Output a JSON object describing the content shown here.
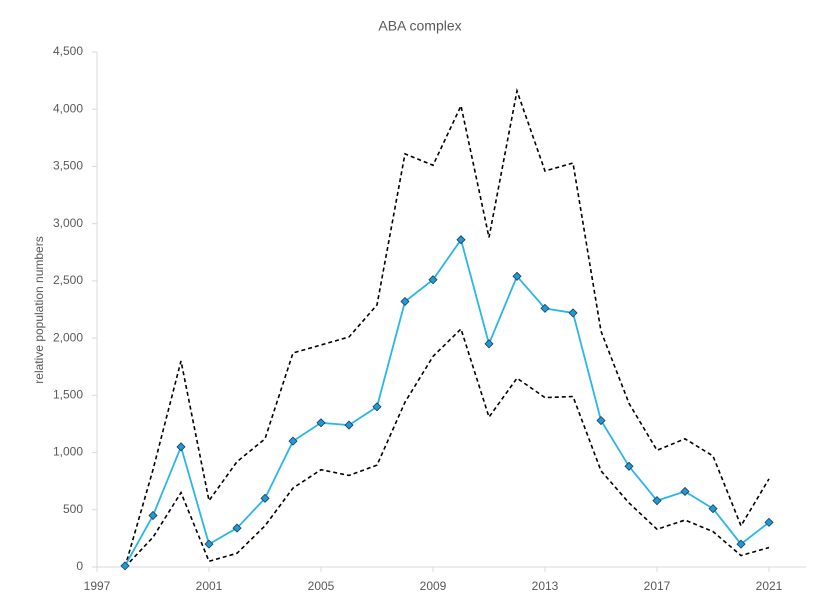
{
  "chart_data": {
    "type": "line",
    "title": "ABA complex",
    "y_label": "relative population numbers",
    "x": [
      1998,
      1999,
      2000,
      2001,
      2002,
      2003,
      2004,
      2005,
      2006,
      2007,
      2008,
      2009,
      2010,
      2011,
      2012,
      2013,
      2014,
      2015,
      2016,
      2017,
      2018,
      2019,
      2020,
      2021
    ],
    "series": [
      {
        "color": "#000000",
        "style": "dashed",
        "values": [
          0,
          850,
          1800,
          580,
          920,
          1120,
          1870,
          1940,
          2010,
          2290,
          3610,
          3510,
          4030,
          2880,
          4160,
          3460,
          3530,
          2060,
          1430,
          1020,
          1120,
          970,
          360,
          770
        ]
      },
      {
        "color": "#000000",
        "style": "dashed",
        "values": [
          0,
          260,
          650,
          50,
          120,
          360,
          690,
          850,
          800,
          890,
          1440,
          1840,
          2080,
          1310,
          1650,
          1480,
          1490,
          840,
          560,
          330,
          410,
          310,
          100,
          170
        ]
      },
      {
        "color": "#29b6e8",
        "style": "solid",
        "marker": "diamond",
        "marker_color": "#1e9ad6",
        "values": [
          10,
          450,
          1050,
          200,
          340,
          600,
          1100,
          1260,
          1240,
          1400,
          2320,
          2510,
          2860,
          1950,
          2540,
          2260,
          2220,
          1280,
          880,
          580,
          660,
          510,
          200,
          390
        ]
      }
    ],
    "xlim": [
      1997,
      2022
    ],
    "xticks": [
      1997,
      2001,
      2005,
      2009,
      2013,
      2017,
      2021
    ],
    "ylim": [
      0,
      4500
    ],
    "yticks": [
      0,
      500,
      {
        "value": 1000,
        "label": "1,000"
      },
      {
        "value": 1500,
        "label": "1,500"
      },
      {
        "value": 2000,
        "label": "2,000"
      },
      {
        "value": 2500,
        "label": "2,500"
      },
      {
        "value": 3000,
        "label": "3,000"
      },
      {
        "value": 3500,
        "label": "3,500"
      },
      {
        "value": 4000,
        "label": "4,000"
      },
      {
        "value": 4500,
        "label": "4,500"
      }
    ],
    "grid": false
  }
}
